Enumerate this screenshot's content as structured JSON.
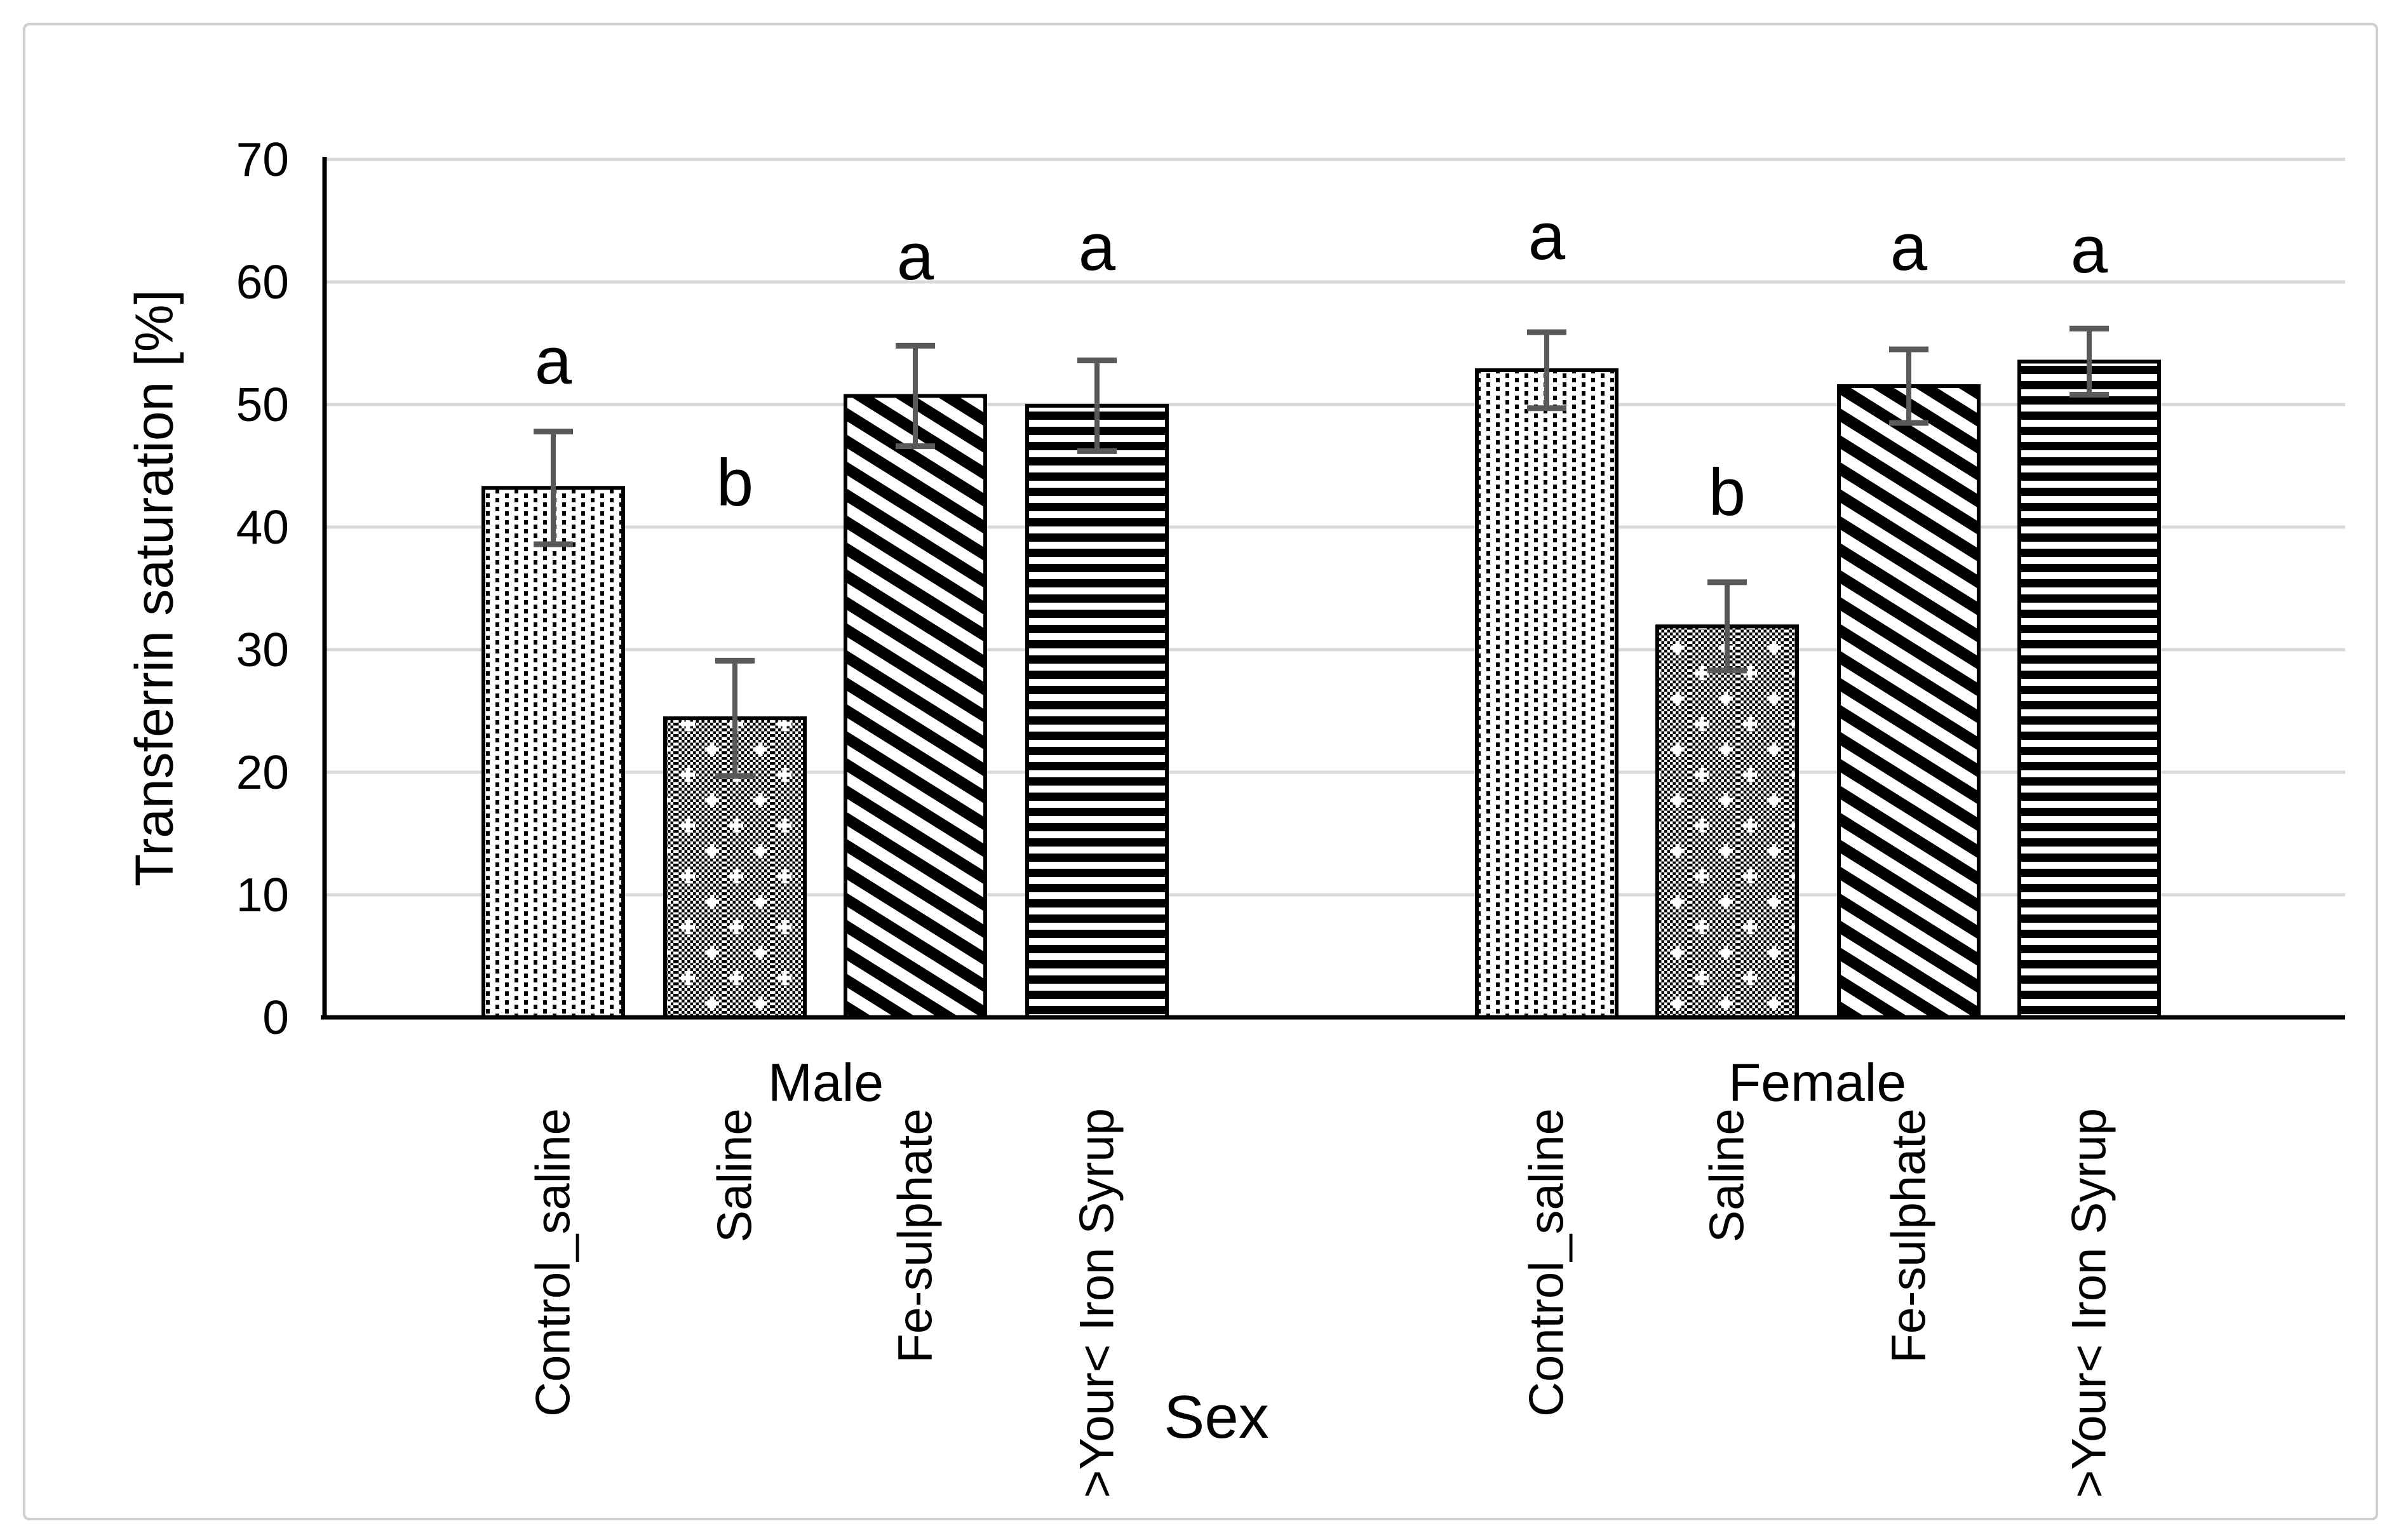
{
  "chart_data": {
    "type": "bar",
    "title": "",
    "ylabel": "Transferrin saturation [%]",
    "xlabel": "Sex",
    "ylim": [
      0,
      70
    ],
    "yticks": [
      0,
      10,
      20,
      30,
      40,
      50,
      60,
      70
    ],
    "grid": "horizontal",
    "legend": "none",
    "error_bars": "plus-minus with caps",
    "groups": [
      {
        "label": "Male",
        "bars": [
          {
            "category": "Control_saline",
            "value": 43.2,
            "error": 4.6,
            "sig": "a",
            "sig_y": 53.5,
            "pattern": "fine-dots"
          },
          {
            "category": "Saline",
            "value": 24.4,
            "error": 4.7,
            "sig": "b",
            "sig_y": 43.6,
            "pattern": "checker-dots"
          },
          {
            "category": "Fe-sulphate",
            "value": 50.7,
            "error": 4.1,
            "sig": "a",
            "sig_y": 62.0,
            "pattern": "diagonal-stripes"
          },
          {
            "category": ">Your< Iron Syrup",
            "value": 49.9,
            "error": 3.7,
            "sig": "a",
            "sig_y": 62.8,
            "pattern": "horizontal-stripes"
          }
        ]
      },
      {
        "label": "Female",
        "bars": [
          {
            "category": "Control_saline",
            "value": 52.8,
            "error": 3.1,
            "sig": "a",
            "sig_y": 63.7,
            "pattern": "fine-dots"
          },
          {
            "category": "Saline",
            "value": 31.9,
            "error": 3.6,
            "sig": "b",
            "sig_y": 42.8,
            "pattern": "checker-dots"
          },
          {
            "category": "Fe-sulphate",
            "value": 51.5,
            "error": 3.0,
            "sig": "a",
            "sig_y": 62.8,
            "pattern": "diagonal-stripes"
          },
          {
            "category": ">Your< Iron Syrup",
            "value": 53.5,
            "error": 2.7,
            "sig": "a",
            "sig_y": 62.6,
            "pattern": "horizontal-stripes"
          }
        ]
      }
    ]
  },
  "colors": {
    "grid": "#D9D9D9",
    "axis": "#000000",
    "error_bar": "#595959",
    "bar_fill": "#FFFFFF",
    "bar_stroke": "#000000",
    "frame": "#CFCFCF",
    "text": "#000000"
  }
}
